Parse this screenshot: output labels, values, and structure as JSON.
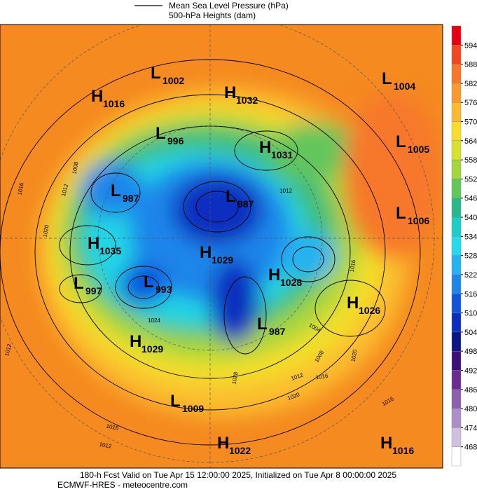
{
  "legend": {
    "items": [
      "Mean Sea Level Pressure (hPa)",
      "500-hPa Heights (dam)"
    ]
  },
  "centers": [
    {
      "type": "H",
      "value": 1016
    },
    {
      "type": "L",
      "value": 1002
    },
    {
      "type": "H",
      "value": 1032
    },
    {
      "type": "L",
      "value": 1004
    },
    {
      "type": "L",
      "value": 996
    },
    {
      "type": "H",
      "value": 1031
    },
    {
      "type": "L",
      "value": 1005
    },
    {
      "type": "L",
      "value": 987
    },
    {
      "type": "L",
      "value": 987
    },
    {
      "type": "L",
      "value": 1006
    },
    {
      "type": "H",
      "value": 1035
    },
    {
      "type": "H",
      "value": 1029
    },
    {
      "type": "L",
      "value": 997
    },
    {
      "type": "L",
      "value": 993
    },
    {
      "type": "H",
      "value": 1028
    },
    {
      "type": "H",
      "value": 1026
    },
    {
      "type": "L",
      "value": 987
    },
    {
      "type": "H",
      "value": 1029
    },
    {
      "type": "L",
      "value": 1009
    },
    {
      "type": "H",
      "value": 1022
    },
    {
      "type": "H",
      "value": 1016
    }
  ],
  "contour_labels": [
    1016,
    1012,
    1008,
    1020,
    1012,
    1016,
    1012,
    1024,
    1012,
    1016,
    1020,
    1004,
    1008,
    1012,
    1016,
    1020,
    1016,
    1028
  ],
  "colorbar": {
    "levels": [
      594,
      588,
      582,
      576,
      570,
      564,
      558,
      552,
      546,
      540,
      534,
      528,
      522,
      516,
      510,
      504,
      498,
      492,
      486,
      480,
      474,
      468
    ],
    "colors": [
      "#e60012",
      "#f4461f",
      "#f7782a",
      "#f99a2e",
      "#fbbb30",
      "#f9dc2c",
      "#d8e22e",
      "#a3d63a",
      "#62c65c",
      "#27b98b",
      "#1bcdc4",
      "#23dbea",
      "#25b2f0",
      "#1c86ea",
      "#1155dc",
      "#0a2fc0",
      "#0c1785",
      "#3c1077",
      "#6a2c8e",
      "#8e5fac",
      "#ae8ec6",
      "#d0c1e0",
      "#ffffff"
    ]
  },
  "footer": {
    "lines": [
      "180-h Fcst Valid on Tue Apr 15 12:00:00 2025, Initialized on Tue Apr  8 00:00:00 2025",
      "ECMWF-HRES - meteocentre.com"
    ]
  }
}
